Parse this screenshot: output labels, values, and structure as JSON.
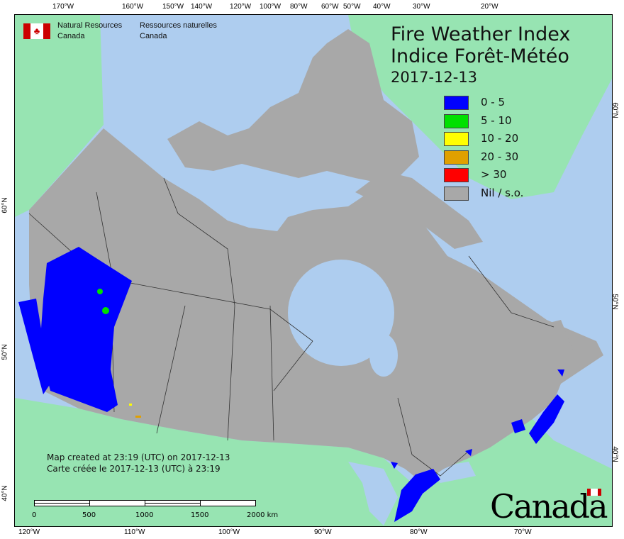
{
  "header": {
    "org_en": [
      "Natural Resources",
      "Canada"
    ],
    "org_fr": [
      "Ressources naturelles",
      "Canada"
    ],
    "title_en": "Fire Weather Index",
    "title_fr": "Indice Forêt-Météo",
    "date": "2017-12-13"
  },
  "legend": [
    {
      "label": "0 - 5",
      "color": "#0000ff"
    },
    {
      "label": "5 - 10",
      "color": "#00e000"
    },
    {
      "label": "10 - 20",
      "color": "#ffff00"
    },
    {
      "label": "20 - 30",
      "color": "#e0a000"
    },
    {
      "label": "> 30",
      "color": "#ff0000"
    },
    {
      "label": "Nil / s.o.",
      "color": "#a8a8a8"
    }
  ],
  "top_ticks": [
    "170°W",
    "160°W",
    "150°W",
    "140°W",
    "120°W",
    "100°W",
    "80°W",
    "60°W",
    "50°W",
    "40°W",
    "30°W",
    "20°W"
  ],
  "bottom_ticks": [
    "120°W",
    "110°W",
    "100°W",
    "90°W",
    "80°W",
    "70°W"
  ],
  "left_ticks": [
    "60°N",
    "50°N",
    "40°N"
  ],
  "right_ticks": [
    "60°N",
    "50°N",
    "40°N"
  ],
  "credit": {
    "en": "Map created at 23:19 (UTC) on 2017-12-13",
    "fr": "Carte créée le 2017-12-13 (UTC) à 23:19"
  },
  "scale_bar": {
    "labels": [
      "0",
      "500",
      "1000",
      "1500",
      "2000 km"
    ]
  },
  "wordmark": "Canada",
  "colors": {
    "water": "#aecdef",
    "foreign_land": "#97e4b2",
    "nil_land": "#a8a8a8"
  }
}
